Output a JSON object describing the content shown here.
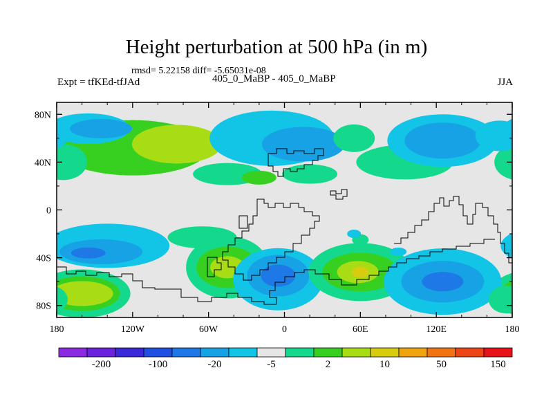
{
  "title": "Height perturbation at 500 hPa (in m)",
  "stats_line": "rmsd= 5.22158 diff= -5.65031e-08",
  "left_label": "Expt = tfKEd-tfJAd",
  "center_label": "405_0_MaBP - 405_0_MaBP",
  "right_label": "JJA",
  "colors": {
    "background_field": "#e6e6e6",
    "frame": "#000000",
    "coast": "#000000"
  },
  "chart_data": {
    "type": "heatmap",
    "title": "Height perturbation at 500 hPa (in m)",
    "x_ticks": [
      "180",
      "120W",
      "60W",
      "0",
      "60E",
      "120E",
      "180"
    ],
    "y_ticks": [
      "80N",
      "40N",
      "0",
      "40S",
      "80S"
    ],
    "xlim": [
      -180,
      180
    ],
    "ylim": [
      -90,
      90
    ],
    "colorbar": {
      "colors": [
        "#8a2be2",
        "#6a22dc",
        "#3c28d6",
        "#2050e0",
        "#1e78e6",
        "#18a2e6",
        "#12c4e6",
        "#e6e6e6",
        "#14d88c",
        "#38d020",
        "#a8dc14",
        "#d8cc10",
        "#f0a410",
        "#f07414",
        "#ec4616",
        "#e6141a"
      ],
      "tick_labels": [
        "-200",
        "-100",
        "-20",
        "-5",
        "2",
        "10",
        "50",
        "150"
      ]
    },
    "regions": [
      {
        "sign": "+",
        "level": 2,
        "lon": -120,
        "lat": 52
      },
      {
        "sign": "+",
        "level": 3,
        "lon": -85,
        "lat": 55
      },
      {
        "sign": "-",
        "level": 1,
        "lon": -155,
        "lat": 68
      },
      {
        "sign": "-",
        "level": 2,
        "lon": -145,
        "lat": 68
      },
      {
        "sign": "+",
        "level": 1,
        "lon": -175,
        "lat": 40
      },
      {
        "sign": "-",
        "level": 1,
        "lon": -10,
        "lat": 60
      },
      {
        "sign": "-",
        "level": 2,
        "lon": 15,
        "lat": 55
      },
      {
        "sign": "+",
        "level": 1,
        "lon": -45,
        "lat": 30
      },
      {
        "sign": "+",
        "level": 2,
        "lon": -20,
        "lat": 27
      },
      {
        "sign": "+",
        "level": 1,
        "lon": 20,
        "lat": 30
      },
      {
        "sign": "+",
        "level": 1,
        "lon": 55,
        "lat": 60
      },
      {
        "sign": "+",
        "level": 1,
        "lon": 95,
        "lat": 40
      },
      {
        "sign": "-",
        "level": 1,
        "lon": 125,
        "lat": 58
      },
      {
        "sign": "-",
        "level": 2,
        "lon": 125,
        "lat": 58
      },
      {
        "sign": "-",
        "level": 1,
        "lon": 170,
        "lat": 62
      },
      {
        "sign": "-",
        "level": 1,
        "lon": -140,
        "lat": -30
      },
      {
        "sign": "-",
        "level": 2,
        "lon": -145,
        "lat": -35
      },
      {
        "sign": "-",
        "level": 3,
        "lon": -155,
        "lat": -36
      },
      {
        "sign": "+",
        "level": 1,
        "lon": -65,
        "lat": -23
      },
      {
        "sign": "+",
        "level": 1,
        "lon": -45,
        "lat": -48
      },
      {
        "sign": "+",
        "level": 2,
        "lon": -45,
        "lat": -48
      },
      {
        "sign": "+",
        "level": 3,
        "lon": -45,
        "lat": -48
      },
      {
        "sign": "+",
        "level": 1,
        "lon": -160,
        "lat": -70
      },
      {
        "sign": "+",
        "level": 2,
        "lon": -160,
        "lat": -70
      },
      {
        "sign": "+",
        "level": 3,
        "lon": -160,
        "lat": -70
      },
      {
        "sign": "-",
        "level": 1,
        "lon": -5,
        "lat": -58
      },
      {
        "sign": "-",
        "level": 2,
        "lon": -5,
        "lat": -55
      },
      {
        "sign": "-",
        "level": 3,
        "lon": -5,
        "lat": -55
      },
      {
        "sign": "+",
        "level": 1,
        "lon": 60,
        "lat": -52
      },
      {
        "sign": "+",
        "level": 2,
        "lon": 60,
        "lat": -52
      },
      {
        "sign": "+",
        "level": 3,
        "lon": 58,
        "lat": -52
      },
      {
        "sign": "+",
        "level": 4,
        "lon": 60,
        "lat": -52
      },
      {
        "sign": "-",
        "level": 1,
        "lon": 125,
        "lat": -60
      },
      {
        "sign": "-",
        "level": 2,
        "lon": 125,
        "lat": -60
      },
      {
        "sign": "-",
        "level": 3,
        "lon": 125,
        "lat": -60
      },
      {
        "sign": "+",
        "level": 1,
        "lon": 60,
        "lat": -25
      },
      {
        "sign": "-",
        "level": 1,
        "lon": 55,
        "lat": -20
      },
      {
        "sign": "-",
        "level": 1,
        "lon": 90,
        "lat": -35
      },
      {
        "sign": "+",
        "level": 1,
        "lon": 175,
        "lat": -75
      }
    ]
  }
}
